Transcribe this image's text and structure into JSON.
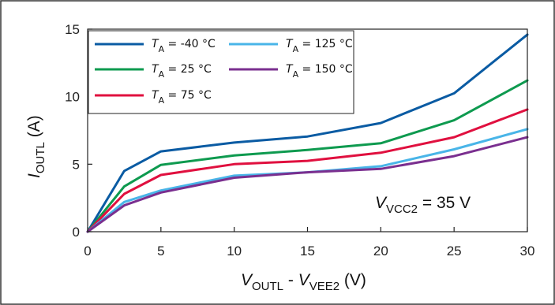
{
  "chart_data": {
    "type": "line",
    "x": [
      0,
      2.5,
      5,
      10,
      15,
      20,
      25,
      30
    ],
    "xlim": [
      0,
      30
    ],
    "ylim": [
      0,
      15
    ],
    "xticks": [
      "0",
      "5",
      "10",
      "15",
      "20",
      "25",
      "30"
    ],
    "yticks": [
      "0",
      "5",
      "10",
      "15"
    ],
    "xlabel": {
      "main": "V",
      "sub1": "OUTL",
      "sep": " - ",
      "main2": "V",
      "sub2": "VEE2",
      "unit": " (V)"
    },
    "ylabel": {
      "main": "I",
      "sub": "OUTL",
      "unit": " (A)"
    },
    "annotation": {
      "main": "V",
      "sub": "VCC2",
      "rest": " = 35 V"
    },
    "grid": false,
    "legend_position": "top-left",
    "series": [
      {
        "name_main": "T",
        "name_sub": "A",
        "name_rest": " = -40 °C",
        "color": "#0a5ba3",
        "values": [
          0,
          4.5,
          5.95,
          6.6,
          7.05,
          8.05,
          10.25,
          14.6
        ]
      },
      {
        "name_main": "T",
        "name_sub": "A",
        "name_rest": " = 25 °C",
        "color": "#0e9a4f",
        "values": [
          0,
          3.35,
          4.95,
          5.65,
          6.05,
          6.55,
          8.25,
          11.2
        ]
      },
      {
        "name_main": "T",
        "name_sub": "A",
        "name_rest": " = 75 °C",
        "color": "#e0103f",
        "values": [
          0,
          2.8,
          4.2,
          5.0,
          5.25,
          5.85,
          7.0,
          9.05
        ]
      },
      {
        "name_main": "T",
        "name_sub": "A",
        "name_rest": " = 125 °C",
        "color": "#49b5e8",
        "values": [
          0,
          2.2,
          3.05,
          4.15,
          4.4,
          4.85,
          6.1,
          7.6
        ]
      },
      {
        "name_main": "T",
        "name_sub": "A",
        "name_rest": " = 150 °C",
        "color": "#7a2f8f",
        "values": [
          0,
          1.95,
          2.9,
          4.0,
          4.4,
          4.65,
          5.6,
          7.0
        ]
      }
    ]
  }
}
